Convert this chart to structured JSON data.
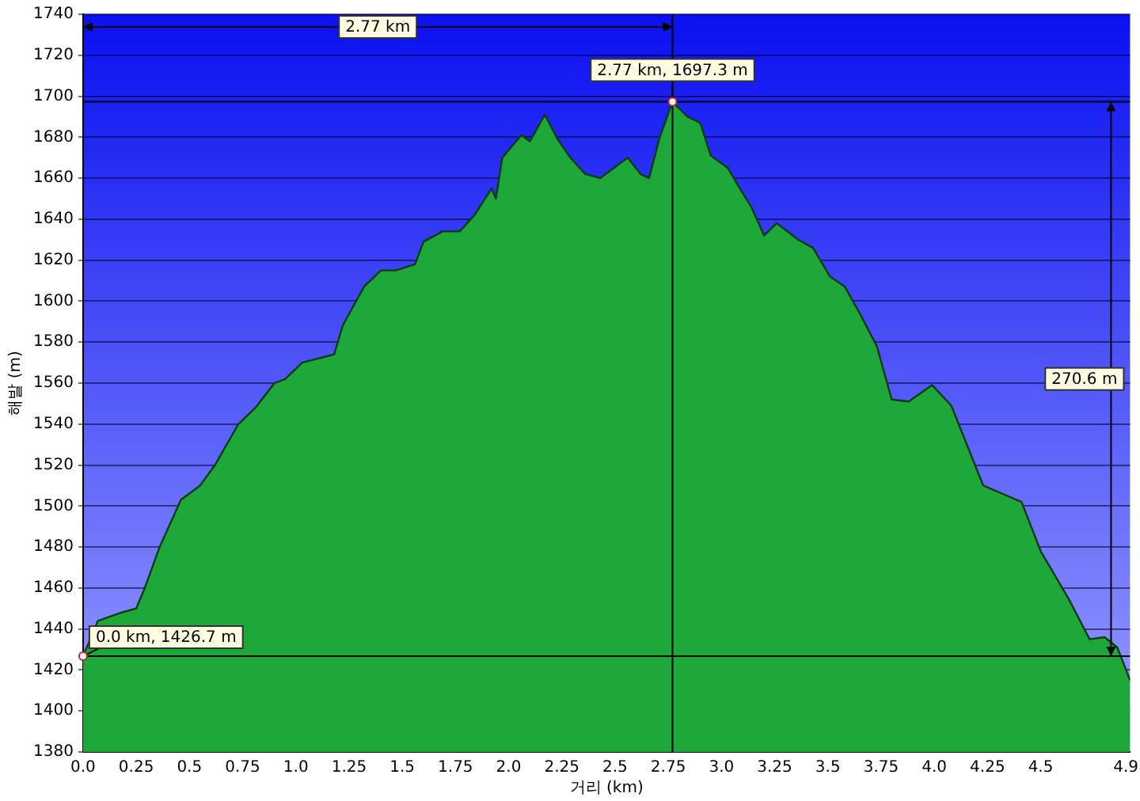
{
  "chart_data": {
    "type": "area",
    "xlabel": "거리 (km)",
    "ylabel": "해발 (m)",
    "x": [
      0,
      0.07,
      0.18,
      0.25,
      0.29,
      0.36,
      0.46,
      0.55,
      0.62,
      0.73,
      0.81,
      0.9,
      0.95,
      1.03,
      1.18,
      1.22,
      1.32,
      1.4,
      1.47,
      1.56,
      1.6,
      1.69,
      1.77,
      1.84,
      1.92,
      1.94,
      1.97,
      2.06,
      2.1,
      2.17,
      2.23,
      2.29,
      2.36,
      2.43,
      2.52,
      2.56,
      2.62,
      2.66,
      2.71,
      2.77,
      2.84,
      2.9,
      2.95,
      3.03,
      3.08,
      3.14,
      3.2,
      3.26,
      3.36,
      3.43,
      3.51,
      3.58,
      3.65,
      3.73,
      3.8,
      3.88,
      3.99,
      4.08,
      4.23,
      4.41,
      4.5,
      4.63,
      4.73,
      4.8,
      4.86,
      4.92
    ],
    "series": [
      {
        "color": "#1fa83a",
        "values": [
          1426.7,
          1444,
          1448,
          1450,
          1460,
          1480,
          1503,
          1510,
          1520,
          1540,
          1548,
          1560,
          1562,
          1570,
          1574,
          1588,
          1607,
          1615,
          1615,
          1618,
          1629,
          1634,
          1634,
          1642,
          1655,
          1650,
          1670,
          1681,
          1678,
          1691,
          1679,
          1670,
          1662,
          1660,
          1667,
          1670,
          1662,
          1660,
          1680,
          1697.3,
          1690,
          1687,
          1671,
          1665,
          1656,
          1646,
          1632,
          1638,
          1630,
          1626,
          1612,
          1607,
          1594,
          1578,
          1552,
          1551,
          1559,
          1549,
          1510,
          1502,
          1478,
          1455,
          1435,
          1436,
          1431,
          1415
        ]
      }
    ],
    "xlim": [
      0,
      4.92
    ],
    "xticks": [
      {
        "value": 0,
        "label": "0.0"
      },
      0.25,
      0.5,
      0.75,
      {
        "value": 1,
        "label": "1.0"
      },
      1.25,
      1.5,
      1.75,
      {
        "value": 2,
        "label": "2.0"
      },
      2.25,
      2.5,
      2.75,
      {
        "value": 3,
        "label": "3.0"
      },
      3.25,
      3.5,
      3.75,
      {
        "value": 4,
        "label": "4.0"
      },
      4.25,
      4.5,
      4.9
    ],
    "ylim": [
      1380,
      1740
    ],
    "yticks": [
      1380,
      1400,
      1420,
      1440,
      1460,
      1480,
      1500,
      1520,
      1540,
      1560,
      1580,
      1600,
      1620,
      1640,
      1660,
      1680,
      1700,
      1720,
      1740
    ],
    "grid": "y",
    "legend": false,
    "ref_lines": [
      {
        "axis": "y",
        "value": 1697.3,
        "color": "#000000"
      },
      {
        "axis": "y",
        "value": 1426.7,
        "color": "#000000"
      },
      {
        "axis": "x",
        "value": 2.77,
        "color": "#000000"
      }
    ],
    "annotations": [
      "2.77 km",
      {
        "text": "2.77 km, 1697.3 m",
        "x": 2.77,
        "y": 1697.3
      },
      {
        "text": "0.0 km, 1426.7 m",
        "x": 0,
        "y": 1426.7
      },
      "270.6 m"
    ]
  }
}
